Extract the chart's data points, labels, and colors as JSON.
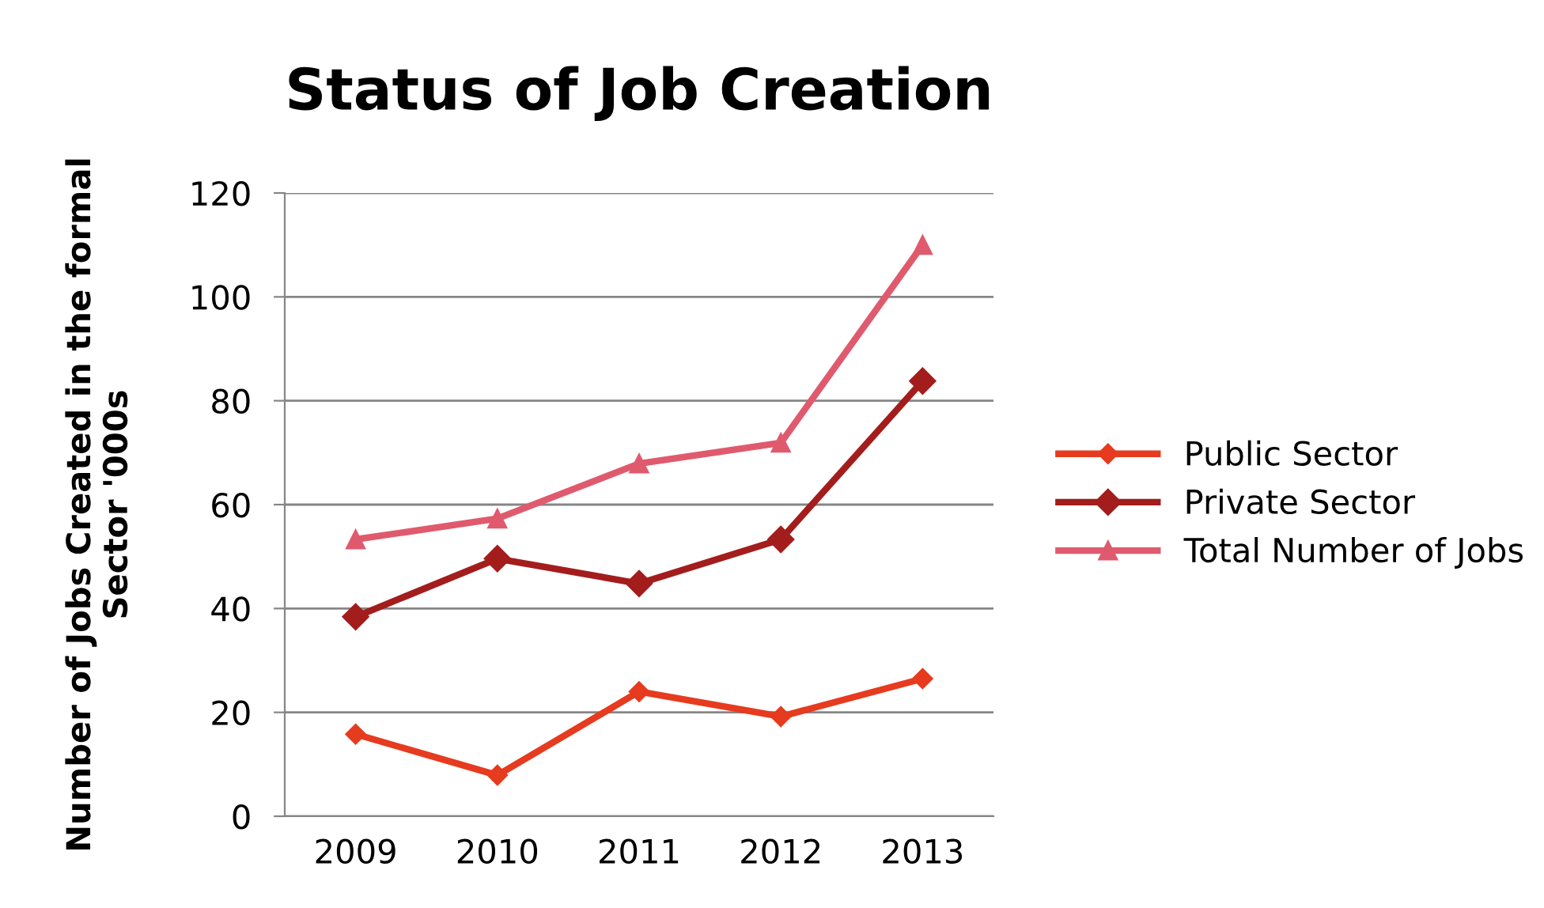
{
  "chart_data": {
    "type": "line",
    "title": "Status of Job Creation",
    "ylabel": "Number of Jobs Created in the formal Sector '000s",
    "categories": [
      "2009",
      "2010",
      "2011",
      "2012",
      "2013"
    ],
    "series": [
      {
        "name": "Public Sector",
        "color": "#e63b1f",
        "marker": "diamond",
        "values": [
          15.8,
          7.9,
          24,
          19.2,
          26.5
        ]
      },
      {
        "name": "Private Sector",
        "color": "#a31d1d",
        "marker": "diamond",
        "values": [
          38.4,
          49.6,
          44.8,
          53.3,
          83.8
        ]
      },
      {
        "name": "Total Number of Jobs",
        "color": "#e05a6e",
        "marker": "triangle",
        "values": [
          53.3,
          57.3,
          67.9,
          71.9,
          110
        ]
      }
    ],
    "ylim": [
      0,
      120
    ],
    "yticks": [
      0,
      20,
      40,
      60,
      80,
      100,
      120
    ],
    "grid": "y",
    "legend": "right",
    "line_style": "solid"
  }
}
